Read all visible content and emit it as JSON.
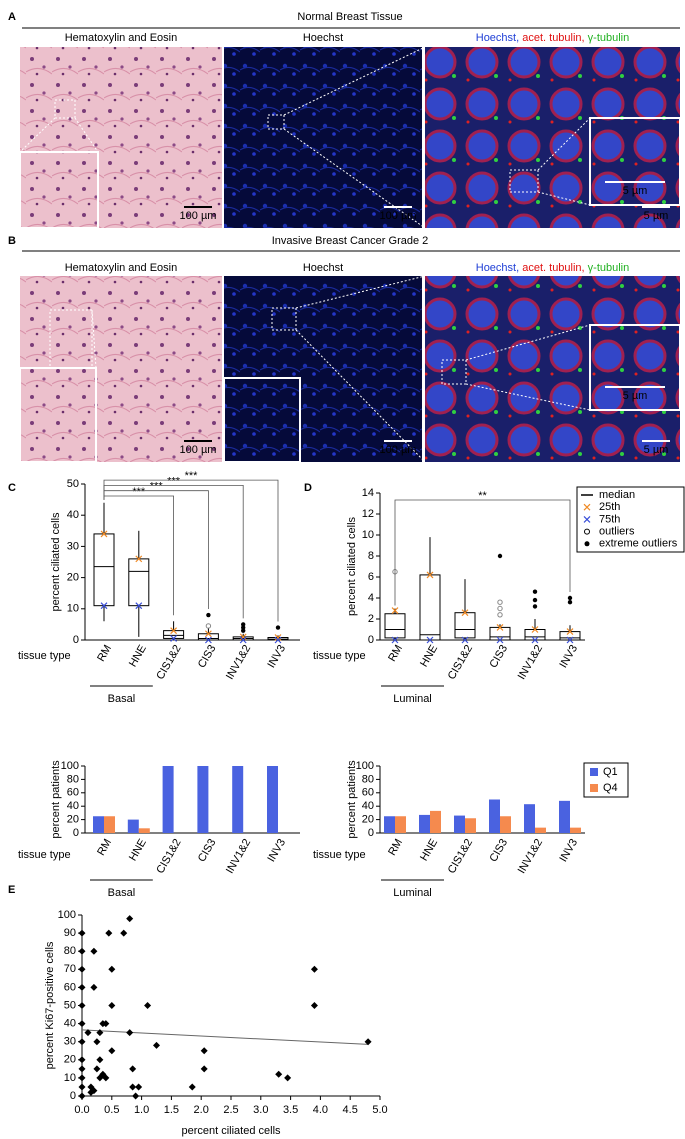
{
  "panels": [
    {
      "label": "A",
      "title": "Normal Breast Tissue",
      "images": [
        {
          "caption": "Hematoxylin and Eosin",
          "scale": "100 µm"
        },
        {
          "caption": "Hoechst",
          "color": "#1f3fd6",
          "scale": "100 µm"
        },
        {
          "caption": [
            "Hoechst,",
            " acet. tubulin,",
            " γ-tubulin"
          ],
          "colors": [
            "#1f3fd6",
            "#e01010",
            "#20b020"
          ],
          "scale": "5 µm",
          "inset_scale": "5 µm"
        }
      ]
    },
    {
      "label": "B",
      "title": "Invasive Breast Cancer Grade 2",
      "images": [
        {
          "caption": "Hematoxylin and Eosin",
          "scale": "100 µm"
        },
        {
          "caption": "Hoechst",
          "color": "#1f3fd6",
          "scale": "100 µm"
        },
        {
          "caption": [
            "Hoechst,",
            " acet. tubulin,",
            " γ-tubulin"
          ],
          "colors": [
            "#1f3fd6",
            "#e01010",
            "#20b020"
          ],
          "scale": "5 µm",
          "inset_scale": "5 µm"
        }
      ]
    }
  ],
  "chart_data": [
    {
      "type": "box",
      "label": "C",
      "ylabel": "percent ciliated cells",
      "xlabel": "tissue type",
      "group": "Basal",
      "categories": [
        "RM",
        "HNE",
        "CIS1&2",
        "CIS3",
        "INV1&2",
        "INV3"
      ],
      "ylim": [
        0,
        50
      ],
      "yticks": [
        0,
        10,
        20,
        30,
        40,
        50
      ],
      "x25_color": "#f08a24",
      "x75_color": "#3a4fd8",
      "boxes": [
        {
          "min": 6,
          "q1": 11,
          "median": 23.5,
          "q3": 34,
          "max": 44,
          "x25": 34,
          "x75": 11,
          "outliers": [],
          "extreme_outliers": []
        },
        {
          "min": 1,
          "q1": 11,
          "median": 22,
          "q3": 26,
          "max": 35,
          "x25": 26,
          "x75": 11,
          "outliers": [],
          "extreme_outliers": []
        },
        {
          "min": 0,
          "q1": 0.5,
          "median": 1.5,
          "q3": 3,
          "max": 6,
          "x25": 3,
          "x75": 0.5,
          "outliers": [],
          "extreme_outliers": []
        },
        {
          "min": 0,
          "q1": 0,
          "median": 0.5,
          "q3": 2,
          "max": 4,
          "x25": 2,
          "x75": 0,
          "outliers": [
            4.5
          ],
          "extreme_outliers": [
            8
          ]
        },
        {
          "min": 0,
          "q1": 0,
          "median": 0.5,
          "q3": 1,
          "max": 2,
          "x25": 1,
          "x75": 0,
          "outliers": [],
          "extreme_outliers": [
            3,
            4,
            5
          ]
        },
        {
          "min": 0,
          "q1": 0,
          "median": 0.3,
          "q3": 0.8,
          "max": 1.5,
          "x25": 0.8,
          "x75": 0,
          "outliers": [],
          "extreme_outliers": [
            4
          ]
        }
      ],
      "significance": [
        {
          "label": "***",
          "from": 0,
          "to": 2
        },
        {
          "label": "***",
          "from": 0,
          "to": 3
        },
        {
          "label": "***",
          "from": 0,
          "to": 4
        },
        {
          "label": "***",
          "from": 0,
          "to": 5
        }
      ]
    },
    {
      "type": "box",
      "label": "D",
      "ylabel": "percent ciliated cells",
      "xlabel": "tissue type",
      "group": "Luminal",
      "categories": [
        "RM",
        "HNE",
        "CIS1&2",
        "CIS3",
        "INV1&2",
        "INV3"
      ],
      "ylim": [
        0,
        14
      ],
      "yticks": [
        0,
        2,
        4,
        6,
        8,
        10,
        12,
        14
      ],
      "x25_color": "#f08a24",
      "x75_color": "#3a4fd8",
      "legend": [
        "median",
        "25th",
        "75th",
        "outliers",
        "extreme outliers"
      ],
      "boxes": [
        {
          "min": 0,
          "q1": 0.2,
          "median": 1,
          "q3": 2.5,
          "max": 3,
          "x25": 2.8,
          "x75": 0,
          "outliers": [
            6.5
          ],
          "extreme_outliers": []
        },
        {
          "min": 0,
          "q1": 0,
          "median": 0.5,
          "q3": 6.2,
          "max": 9.8,
          "x25": 6.2,
          "x75": 0,
          "outliers": [],
          "extreme_outliers": []
        },
        {
          "min": 0,
          "q1": 0.2,
          "median": 1,
          "q3": 2.6,
          "max": 5.8,
          "x25": 2.6,
          "x75": 0,
          "outliers": [],
          "extreme_outliers": []
        },
        {
          "min": 0,
          "q1": 0,
          "median": 0.3,
          "q3": 1.2,
          "max": 1.5,
          "x25": 1.2,
          "x75": 0,
          "outliers": [
            2.4,
            3,
            3.6
          ],
          "extreme_outliers": [
            8
          ]
        },
        {
          "min": 0,
          "q1": 0,
          "median": 0.3,
          "q3": 1,
          "max": 2,
          "x25": 1,
          "x75": 0,
          "outliers": [],
          "extreme_outliers": [
            3.2,
            3.8,
            4.6
          ]
        },
        {
          "min": 0,
          "q1": 0,
          "median": 0.2,
          "q3": 0.8,
          "max": 1.4,
          "x25": 0.8,
          "x75": 0,
          "outliers": [],
          "extreme_outliers": [
            3.6,
            4
          ]
        }
      ],
      "significance": [
        {
          "label": "**",
          "from": 0,
          "to": 5
        }
      ]
    },
    {
      "type": "bar",
      "ylabel": "percent patients",
      "xlabel": "tissue type",
      "group": "Basal",
      "categories": [
        "RM",
        "HNE",
        "CIS1&2",
        "CIS3",
        "INV1&2",
        "INV3"
      ],
      "ylim": [
        0,
        100
      ],
      "yticks": [
        0,
        20,
        40,
        60,
        80,
        100
      ],
      "series": [
        {
          "color": "#4a62e0",
          "values": [
            25,
            20,
            100,
            100,
            100,
            100
          ]
        },
        {
          "color": "#f58a4e",
          "values": [
            25,
            7,
            0,
            0,
            0,
            0
          ]
        }
      ]
    },
    {
      "type": "bar",
      "ylabel": "percent patients",
      "xlabel": "tissue type",
      "group": "Luminal",
      "categories": [
        "RM",
        "HNE",
        "CIS1&2",
        "CIS3",
        "INV1&2",
        "INV3"
      ],
      "ylim": [
        0,
        100
      ],
      "yticks": [
        0,
        20,
        40,
        60,
        80,
        100
      ],
      "series": [
        {
          "name": "Q1",
          "color": "#4a62e0",
          "values": [
            25,
            27,
            26,
            50,
            43,
            48
          ]
        },
        {
          "name": "Q4",
          "color": "#f58a4e",
          "values": [
            25,
            33,
            22,
            25,
            8,
            8
          ]
        }
      ]
    },
    {
      "type": "scatter",
      "label": "E",
      "ylabel": "percent Ki67-positive cells",
      "xlabel": "percent ciliated cells",
      "xlim": [
        0,
        5
      ],
      "xticks": [
        {
          "value": 0,
          "label": "0.0"
        },
        0.5,
        {
          "value": 1,
          "label": "1.0"
        },
        1.5,
        {
          "value": 2,
          "label": "2.0"
        },
        2.5,
        {
          "value": 3,
          "label": "3.0"
        },
        3.5,
        {
          "value": 4,
          "label": "4.0"
        },
        4.5,
        {
          "value": 5,
          "label": "5.0"
        }
      ],
      "ylim": [
        0,
        100
      ],
      "yticks": [
        0,
        10,
        20,
        30,
        40,
        50,
        60,
        70,
        80,
        90,
        100
      ],
      "color": "#000000",
      "x": [
        0,
        0,
        0,
        0,
        0,
        0,
        0,
        0,
        0,
        0,
        0,
        0,
        0.1,
        0.15,
        0.2,
        0.2,
        0.25,
        0.25,
        0.3,
        0.3,
        0.3,
        0.35,
        0.35,
        0.4,
        0.4,
        0.45,
        0.5,
        0.5,
        0.5,
        0.7,
        0.8,
        0.8,
        0.85,
        0.85,
        0.9,
        0.95,
        1.1,
        1.25,
        1.85,
        2.05,
        2.05,
        3.3,
        3.45,
        3.9,
        3.9,
        4.8,
        0.2,
        0.15
      ],
      "values": [
        90,
        80,
        70,
        60,
        50,
        40,
        30,
        20,
        15,
        10,
        5,
        0,
        35,
        5,
        80,
        60,
        30,
        15,
        35,
        20,
        10,
        40,
        12,
        40,
        10,
        90,
        70,
        50,
        25,
        90,
        98,
        35,
        15,
        5,
        0,
        5,
        50,
        28,
        5,
        25,
        15,
        12,
        10,
        70,
        50,
        30,
        3,
        2
      ],
      "trendline": {
        "x": [
          0,
          4.8
        ],
        "values": [
          36.5,
          28.5
        ]
      }
    }
  ]
}
